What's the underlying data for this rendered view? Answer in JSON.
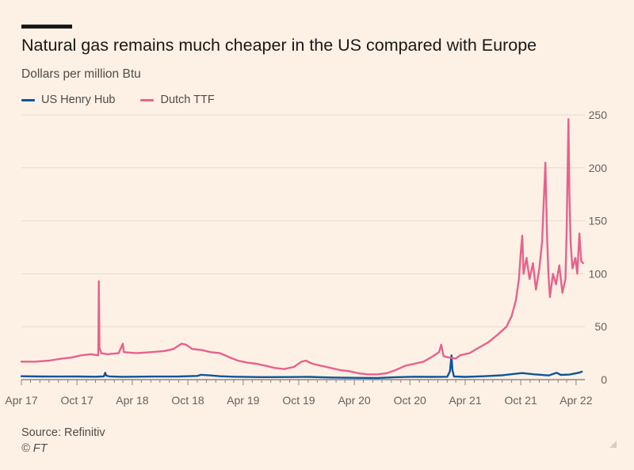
{
  "title": "Natural gas remains much cheaper in the US compared with Europe",
  "subtitle": "Dollars per million Btu",
  "source": "Source: Refinitiv",
  "credit": "© FT",
  "chart_data": {
    "type": "line",
    "ylabel": "Dollars per million Btu",
    "ylim": [
      0,
      250
    ],
    "yticks": [
      0,
      50,
      100,
      150,
      200,
      250
    ],
    "xlim": [
      "2017-04-01",
      "2022-04-30"
    ],
    "xticks": [
      {
        "date": "2017-04-01",
        "label": "Apr 17"
      },
      {
        "date": "2017-10-01",
        "label": "Oct 17"
      },
      {
        "date": "2018-04-01",
        "label": "Apr 18"
      },
      {
        "date": "2018-10-01",
        "label": "Oct 18"
      },
      {
        "date": "2019-04-01",
        "label": "Apr 19"
      },
      {
        "date": "2019-10-01",
        "label": "Oct 19"
      },
      {
        "date": "2020-04-01",
        "label": "Apr 20"
      },
      {
        "date": "2020-10-01",
        "label": "Oct 20"
      },
      {
        "date": "2021-04-01",
        "label": "Apr 21"
      },
      {
        "date": "2021-10-01",
        "label": "Oct 21"
      },
      {
        "date": "2022-04-01",
        "label": "Apr 22"
      }
    ],
    "grid": true,
    "legend_position": "top-left",
    "series": [
      {
        "name": "US Henry Hub",
        "color": "#0f5499",
        "points": [
          [
            "2017-04-01",
            3.2
          ],
          [
            "2017-06-01",
            3.0
          ],
          [
            "2017-08-01",
            2.9
          ],
          [
            "2017-10-01",
            3.0
          ],
          [
            "2017-12-01",
            2.8
          ],
          [
            "2017-12-28",
            3.1
          ],
          [
            "2018-01-02",
            6.5
          ],
          [
            "2018-01-05",
            3.8
          ],
          [
            "2018-01-15",
            3.1
          ],
          [
            "2018-03-01",
            2.7
          ],
          [
            "2018-06-01",
            2.9
          ],
          [
            "2018-09-01",
            3.0
          ],
          [
            "2018-11-01",
            3.5
          ],
          [
            "2018-11-14",
            4.6
          ],
          [
            "2018-12-15",
            4.0
          ],
          [
            "2019-01-15",
            3.2
          ],
          [
            "2019-03-01",
            2.8
          ],
          [
            "2019-06-01",
            2.4
          ],
          [
            "2019-09-01",
            2.5
          ],
          [
            "2019-11-01",
            2.6
          ],
          [
            "2020-01-15",
            2.0
          ],
          [
            "2020-04-01",
            1.7
          ],
          [
            "2020-06-15",
            1.6
          ],
          [
            "2020-08-15",
            2.3
          ],
          [
            "2020-10-15",
            2.8
          ],
          [
            "2020-12-15",
            2.6
          ],
          [
            "2021-02-01",
            2.8
          ],
          [
            "2021-02-10",
            8.0
          ],
          [
            "2021-02-15",
            23.0
          ],
          [
            "2021-02-18",
            9.0
          ],
          [
            "2021-02-23",
            3.0
          ],
          [
            "2021-04-01",
            2.6
          ],
          [
            "2021-06-01",
            3.2
          ],
          [
            "2021-08-01",
            4.1
          ],
          [
            "2021-10-05",
            6.2
          ],
          [
            "2021-11-15",
            5.0
          ],
          [
            "2022-01-01",
            4.0
          ],
          [
            "2022-01-27",
            6.5
          ],
          [
            "2022-02-10",
            4.5
          ],
          [
            "2022-03-10",
            4.8
          ],
          [
            "2022-04-10",
            6.5
          ],
          [
            "2022-04-20",
            7.5
          ]
        ]
      },
      {
        "name": "Dutch TTF",
        "color": "#e8618c",
        "points": [
          [
            "2017-04-01",
            17
          ],
          [
            "2017-05-15",
            17
          ],
          [
            "2017-07-01",
            18
          ],
          [
            "2017-08-15",
            20
          ],
          [
            "2017-09-15",
            21
          ],
          [
            "2017-10-15",
            23
          ],
          [
            "2017-11-15",
            24
          ],
          [
            "2017-12-10",
            23
          ],
          [
            "2017-12-12",
            93
          ],
          [
            "2017-12-14",
            30
          ],
          [
            "2017-12-20",
            25
          ],
          [
            "2018-01-10",
            24
          ],
          [
            "2018-02-15",
            25
          ],
          [
            "2018-03-01",
            34
          ],
          [
            "2018-03-04",
            26
          ],
          [
            "2018-04-15",
            25
          ],
          [
            "2018-06-01",
            26
          ],
          [
            "2018-07-15",
            27
          ],
          [
            "2018-08-15",
            29
          ],
          [
            "2018-09-10",
            34
          ],
          [
            "2018-09-25",
            33
          ],
          [
            "2018-10-15",
            29
          ],
          [
            "2018-11-15",
            28
          ],
          [
            "2018-12-15",
            26
          ],
          [
            "2019-01-15",
            25
          ],
          [
            "2019-02-15",
            21
          ],
          [
            "2019-03-15",
            18
          ],
          [
            "2019-04-15",
            16
          ],
          [
            "2019-05-15",
            15
          ],
          [
            "2019-06-15",
            13
          ],
          [
            "2019-07-15",
            11
          ],
          [
            "2019-08-15",
            10
          ],
          [
            "2019-09-15",
            12
          ],
          [
            "2019-10-10",
            17
          ],
          [
            "2019-10-25",
            18
          ],
          [
            "2019-11-15",
            15
          ],
          [
            "2019-12-15",
            13
          ],
          [
            "2020-01-15",
            11
          ],
          [
            "2020-02-15",
            9
          ],
          [
            "2020-03-15",
            8
          ],
          [
            "2020-04-15",
            6
          ],
          [
            "2020-05-15",
            5
          ],
          [
            "2020-06-15",
            5
          ],
          [
            "2020-07-15",
            6
          ],
          [
            "2020-08-15",
            9
          ],
          [
            "2020-09-15",
            13
          ],
          [
            "2020-10-15",
            15
          ],
          [
            "2020-11-15",
            17
          ],
          [
            "2020-12-15",
            22
          ],
          [
            "2021-01-05",
            26
          ],
          [
            "2021-01-12",
            33
          ],
          [
            "2021-01-20",
            22
          ],
          [
            "2021-02-05",
            21
          ],
          [
            "2021-03-01",
            20
          ],
          [
            "2021-03-15",
            23
          ],
          [
            "2021-04-15",
            25
          ],
          [
            "2021-05-15",
            30
          ],
          [
            "2021-06-15",
            35
          ],
          [
            "2021-07-15",
            42
          ],
          [
            "2021-08-15",
            50
          ],
          [
            "2021-09-01",
            60
          ],
          [
            "2021-09-15",
            75
          ],
          [
            "2021-09-25",
            95
          ],
          [
            "2021-10-01",
            120
          ],
          [
            "2021-10-06",
            136
          ],
          [
            "2021-10-10",
            100
          ],
          [
            "2021-10-20",
            115
          ],
          [
            "2021-10-30",
            95
          ],
          [
            "2021-11-10",
            110
          ],
          [
            "2021-11-20",
            85
          ],
          [
            "2021-12-01",
            105
          ],
          [
            "2021-12-10",
            130
          ],
          [
            "2021-12-21",
            205
          ],
          [
            "2021-12-26",
            140
          ],
          [
            "2021-12-31",
            100
          ],
          [
            "2022-01-05",
            78
          ],
          [
            "2022-01-15",
            100
          ],
          [
            "2022-01-25",
            90
          ],
          [
            "2022-02-05",
            108
          ],
          [
            "2022-02-15",
            82
          ],
          [
            "2022-02-25",
            95
          ],
          [
            "2022-03-01",
            140
          ],
          [
            "2022-03-07",
            246
          ],
          [
            "2022-03-10",
            175
          ],
          [
            "2022-03-14",
            130
          ],
          [
            "2022-03-20",
            105
          ],
          [
            "2022-03-30",
            115
          ],
          [
            "2022-04-05",
            100
          ],
          [
            "2022-04-12",
            138
          ],
          [
            "2022-04-18",
            112
          ],
          [
            "2022-04-24",
            110
          ]
        ]
      }
    ]
  }
}
